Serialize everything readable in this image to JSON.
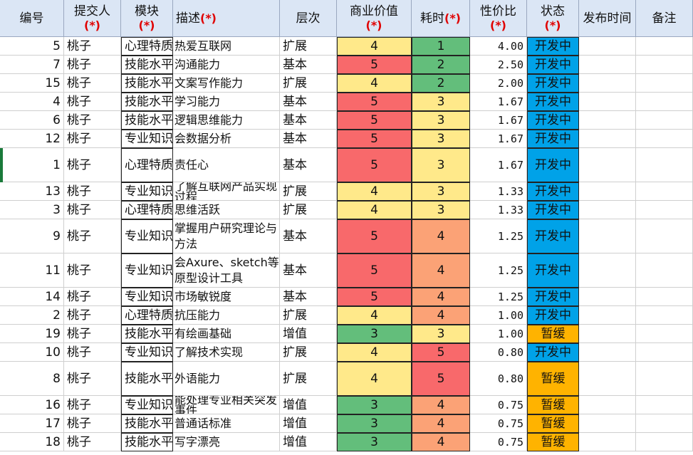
{
  "headers": {
    "id": "编号",
    "submitter": "提交人",
    "module": "模块",
    "desc": "描述",
    "level": "层次",
    "value": "商业价值",
    "time": "耗时",
    "ratio": "性价比",
    "status": "状态",
    "publish": "发布时间",
    "note": "备注",
    "required_mark": "(*)"
  },
  "colors": {
    "red": "#f8696b",
    "yellow": "#ffe98a",
    "green": "#63be7b",
    "orange": "#fba276",
    "blue": "#00a2e8",
    "amber": "#ffb300"
  },
  "rows": [
    {
      "id": "5",
      "submitter": "桃子",
      "module": "心理特质",
      "desc": "热爱互联网",
      "level": "扩展",
      "value": "4",
      "time": "1",
      "ratio": "4.00",
      "status": "开发中"
    },
    {
      "id": "7",
      "submitter": "桃子",
      "module": "技能水平",
      "desc": "沟通能力",
      "level": "基本",
      "value": "5",
      "time": "2",
      "ratio": "2.50",
      "status": "开发中"
    },
    {
      "id": "15",
      "submitter": "桃子",
      "module": "技能水平",
      "desc": "文案写作能力",
      "level": "扩展",
      "value": "4",
      "time": "2",
      "ratio": "2.00",
      "status": "开发中"
    },
    {
      "id": "4",
      "submitter": "桃子",
      "module": "技能水平",
      "desc": "学习能力",
      "level": "基本",
      "value": "5",
      "time": "3",
      "ratio": "1.67",
      "status": "开发中"
    },
    {
      "id": "6",
      "submitter": "桃子",
      "module": "技能水平",
      "desc": "逻辑思维能力",
      "level": "基本",
      "value": "5",
      "time": "3",
      "ratio": "1.67",
      "status": "开发中"
    },
    {
      "id": "12",
      "submitter": "桃子",
      "module": "专业知识",
      "desc": "会数据分析",
      "level": "基本",
      "value": "5",
      "time": "3",
      "ratio": "1.67",
      "status": "开发中"
    },
    {
      "id": "1",
      "submitter": "桃子",
      "module": "心理特质",
      "desc": "责任心",
      "level": "基本",
      "value": "5",
      "time": "3",
      "ratio": "1.67",
      "status": "开发中"
    },
    {
      "id": "13",
      "submitter": "桃子",
      "module": "专业知识",
      "desc": "了解互联网产品实现过程",
      "level": "扩展",
      "value": "4",
      "time": "3",
      "ratio": "1.33",
      "status": "开发中"
    },
    {
      "id": "3",
      "submitter": "桃子",
      "module": "心理特质",
      "desc": "思维活跃",
      "level": "扩展",
      "value": "4",
      "time": "3",
      "ratio": "1.33",
      "status": "开发中"
    },
    {
      "id": "9",
      "submitter": "桃子",
      "module": "专业知识",
      "desc": "掌握用户研究理论与方法",
      "level": "基本",
      "value": "5",
      "time": "4",
      "ratio": "1.25",
      "status": "开发中"
    },
    {
      "id": "11",
      "submitter": "桃子",
      "module": "专业知识",
      "desc": "会Axure、sketch等原型设计工具",
      "level": "基本",
      "value": "5",
      "time": "4",
      "ratio": "1.25",
      "status": "开发中"
    },
    {
      "id": "14",
      "submitter": "桃子",
      "module": "专业知识",
      "desc": "市场敏锐度",
      "level": "基本",
      "value": "5",
      "time": "4",
      "ratio": "1.25",
      "status": "开发中"
    },
    {
      "id": "2",
      "submitter": "桃子",
      "module": "心理特质",
      "desc": "抗压能力",
      "level": "扩展",
      "value": "4",
      "time": "4",
      "ratio": "1.00",
      "status": "开发中"
    },
    {
      "id": "19",
      "submitter": "桃子",
      "module": "技能水平",
      "desc": "有绘画基础",
      "level": "增值",
      "value": "3",
      "time": "3",
      "ratio": "1.00",
      "status": "暂缓"
    },
    {
      "id": "10",
      "submitter": "桃子",
      "module": "专业知识",
      "desc": "了解技术实现",
      "level": "扩展",
      "value": "4",
      "time": "5",
      "ratio": "0.80",
      "status": "开发中"
    },
    {
      "id": "8",
      "submitter": "桃子",
      "module": "技能水平",
      "desc": "外语能力",
      "level": "扩展",
      "value": "4",
      "time": "5",
      "ratio": "0.80",
      "status": "暂缓"
    },
    {
      "id": "16",
      "submitter": "桃子",
      "module": "专业知识",
      "desc": "能处理专业相关突发事件",
      "level": "增值",
      "value": "3",
      "time": "4",
      "ratio": "0.75",
      "status": "暂缓"
    },
    {
      "id": "17",
      "submitter": "桃子",
      "module": "技能水平",
      "desc": "普通话标准",
      "level": "增值",
      "value": "3",
      "time": "4",
      "ratio": "0.75",
      "status": "暂缓"
    },
    {
      "id": "18",
      "submitter": "桃子",
      "module": "技能水平",
      "desc": "写字漂亮",
      "level": "增值",
      "value": "3",
      "time": "4",
      "ratio": "0.75",
      "status": "暂缓"
    }
  ]
}
